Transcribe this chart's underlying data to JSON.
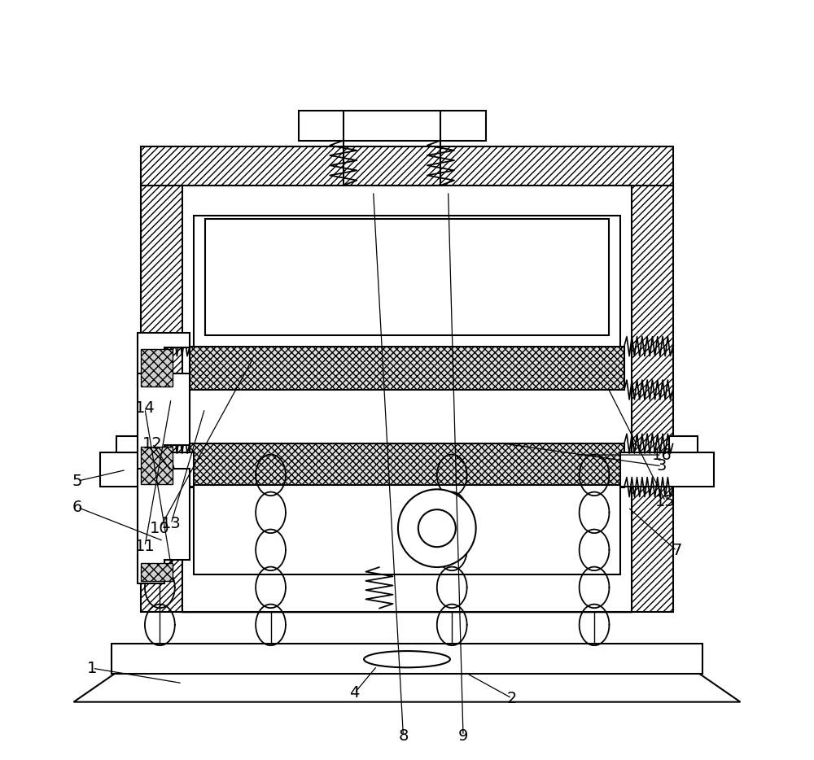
{
  "bg_color": "#ffffff",
  "line_color": "#000000",
  "figsize": [
    10.0,
    9.34
  ],
  "dpi": 100,
  "lw": 1.5,
  "annotations": [
    [
      "1",
      [
        0.08,
        0.115
      ],
      [
        0.2,
        0.095
      ]
    ],
    [
      "2",
      [
        0.64,
        0.075
      ],
      [
        0.58,
        0.108
      ]
    ],
    [
      "3",
      [
        0.84,
        0.385
      ],
      [
        0.63,
        0.415
      ]
    ],
    [
      "4",
      [
        0.43,
        0.082
      ],
      [
        0.46,
        0.118
      ]
    ],
    [
      "5",
      [
        0.06,
        0.365
      ],
      [
        0.125,
        0.38
      ]
    ],
    [
      "6",
      [
        0.06,
        0.33
      ],
      [
        0.175,
        0.285
      ]
    ],
    [
      "7",
      [
        0.86,
        0.272
      ],
      [
        0.795,
        0.33
      ]
    ],
    [
      "8",
      [
        0.495,
        0.025
      ],
      [
        0.455,
        0.752
      ]
    ],
    [
      "9",
      [
        0.575,
        0.025
      ],
      [
        0.555,
        0.752
      ]
    ],
    [
      "10",
      [
        0.17,
        0.302
      ],
      [
        0.295,
        0.53
      ]
    ],
    [
      "11",
      [
        0.15,
        0.278
      ],
      [
        0.185,
        0.475
      ]
    ],
    [
      "12",
      [
        0.16,
        0.415
      ],
      [
        0.185,
        0.378
      ]
    ],
    [
      "13",
      [
        0.185,
        0.308
      ],
      [
        0.23,
        0.462
      ]
    ],
    [
      "14",
      [
        0.15,
        0.462
      ],
      [
        0.185,
        0.252
      ]
    ],
    [
      "15",
      [
        0.845,
        0.338
      ],
      [
        0.768,
        0.49
      ]
    ],
    [
      "16",
      [
        0.84,
        0.4
      ],
      [
        0.725,
        0.4
      ]
    ]
  ]
}
